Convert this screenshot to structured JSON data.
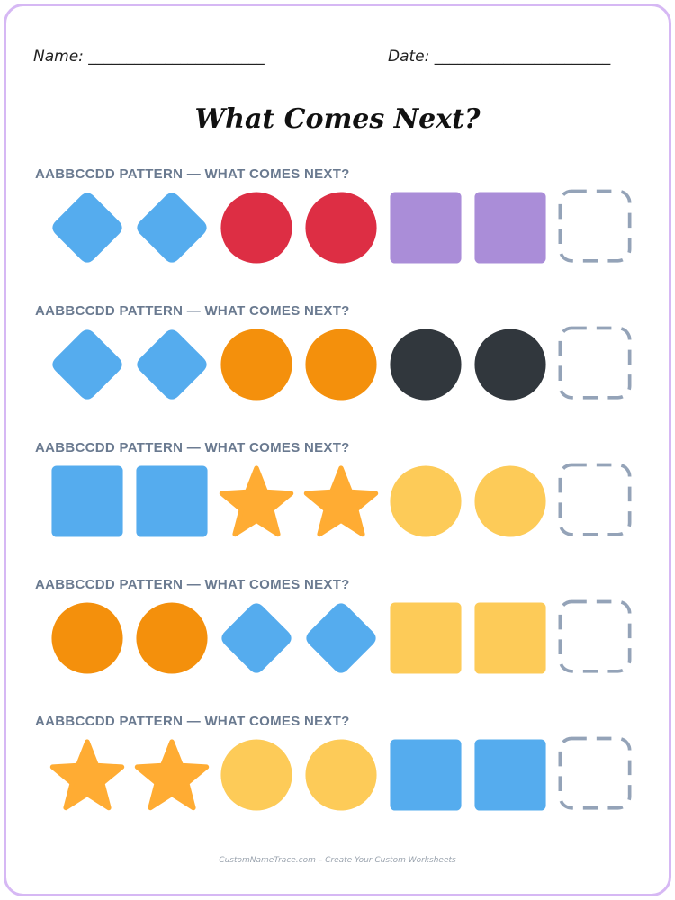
{
  "header": {
    "name_label": "Name:",
    "name_blank": "_______________________",
    "date_label": "Date:",
    "date_blank": "_______________________"
  },
  "title": "What Comes Next?",
  "colors": {
    "blue": "#55acee",
    "red": "#dd2e44",
    "purple": "#aa8dd8",
    "orange": "#f4900c",
    "black": "#31373d",
    "star": "#ffac33",
    "yellow": "#fdcb58",
    "placeholder": "#94a3b8"
  },
  "rows": [
    {
      "label": "AABBCCDD PATTERN — WHAT COMES NEXT?",
      "shapes": [
        {
          "type": "diamond",
          "color": "blue"
        },
        {
          "type": "diamond",
          "color": "blue"
        },
        {
          "type": "circle",
          "color": "red"
        },
        {
          "type": "circle",
          "color": "red"
        },
        {
          "type": "square",
          "color": "purple"
        },
        {
          "type": "square",
          "color": "purple"
        },
        {
          "type": "blank",
          "color": "placeholder"
        }
      ]
    },
    {
      "label": "AABBCCDD PATTERN — WHAT COMES NEXT?",
      "shapes": [
        {
          "type": "diamond",
          "color": "blue"
        },
        {
          "type": "diamond",
          "color": "blue"
        },
        {
          "type": "circle",
          "color": "orange"
        },
        {
          "type": "circle",
          "color": "orange"
        },
        {
          "type": "circle",
          "color": "black"
        },
        {
          "type": "circle",
          "color": "black"
        },
        {
          "type": "blank",
          "color": "placeholder"
        }
      ]
    },
    {
      "label": "AABBCCDD PATTERN — WHAT COMES NEXT?",
      "shapes": [
        {
          "type": "square",
          "color": "blue"
        },
        {
          "type": "square",
          "color": "blue"
        },
        {
          "type": "star",
          "color": "star"
        },
        {
          "type": "star",
          "color": "star"
        },
        {
          "type": "circle",
          "color": "yellow"
        },
        {
          "type": "circle",
          "color": "yellow"
        },
        {
          "type": "blank",
          "color": "placeholder"
        }
      ]
    },
    {
      "label": "AABBCCDD PATTERN — WHAT COMES NEXT?",
      "shapes": [
        {
          "type": "circle",
          "color": "orange"
        },
        {
          "type": "circle",
          "color": "orange"
        },
        {
          "type": "diamond",
          "color": "blue"
        },
        {
          "type": "diamond",
          "color": "blue"
        },
        {
          "type": "square",
          "color": "yellow"
        },
        {
          "type": "square",
          "color": "yellow"
        },
        {
          "type": "blank",
          "color": "placeholder"
        }
      ]
    },
    {
      "label": "AABBCCDD PATTERN — WHAT COMES NEXT?",
      "shapes": [
        {
          "type": "star",
          "color": "star"
        },
        {
          "type": "star",
          "color": "star"
        },
        {
          "type": "circle",
          "color": "yellow"
        },
        {
          "type": "circle",
          "color": "yellow"
        },
        {
          "type": "square",
          "color": "blue"
        },
        {
          "type": "square",
          "color": "blue"
        },
        {
          "type": "blank",
          "color": "placeholder"
        }
      ]
    }
  ],
  "footer": "CustomNameTrace.com – Create Your Custom Worksheets"
}
